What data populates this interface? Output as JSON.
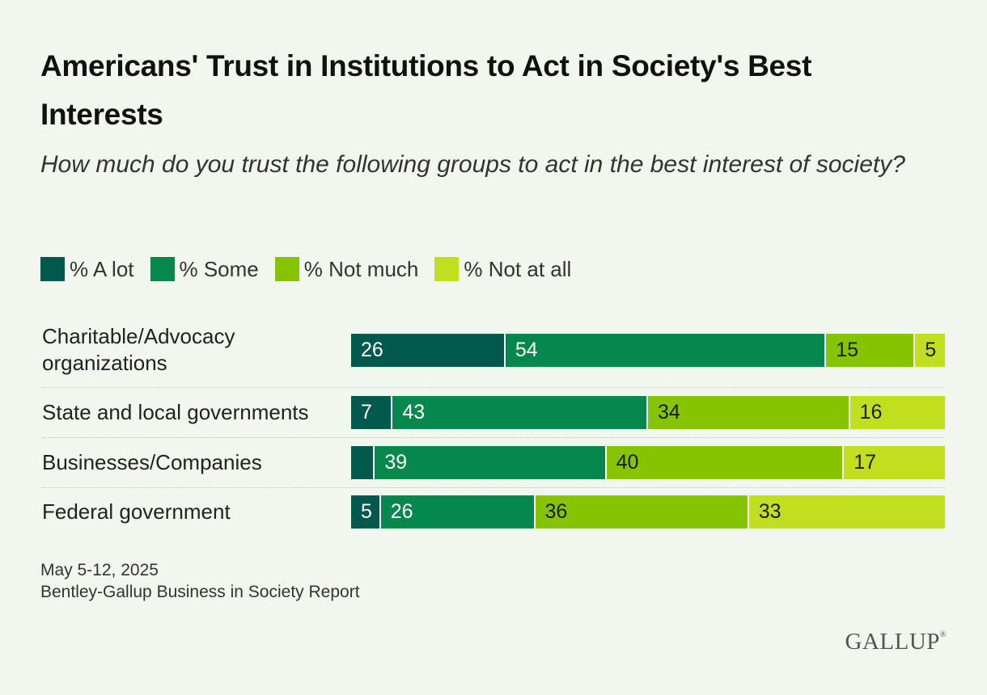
{
  "chart_data": {
    "type": "bar",
    "orientation": "horizontal",
    "stacked": true,
    "title": "Americans' Trust in Institutions to Act in Society's Best Interests",
    "subtitle": "How much do you trust the following groups to act in the best interest of society?",
    "categories": [
      "Charitable/Advocacy organizations",
      "State and local governments",
      "Businesses/Companies",
      "Federal government"
    ],
    "series": [
      {
        "name": "% A lot",
        "color": "#00594c",
        "text_color": "#ffffff",
        "values": [
          26,
          7,
          4,
          5
        ],
        "labels": [
          "26",
          "7",
          "",
          "5"
        ]
      },
      {
        "name": "% Some",
        "color": "#05874e",
        "text_color": "#ffffff",
        "values": [
          54,
          43,
          39,
          26
        ],
        "labels": [
          "54",
          "43",
          "39",
          "26"
        ]
      },
      {
        "name": "% Not much",
        "color": "#86c400",
        "text_color": "#1a1a1a",
        "values": [
          15,
          34,
          40,
          36
        ],
        "labels": [
          "15",
          "34",
          "40",
          "36"
        ]
      },
      {
        "name": "% Not at all",
        "color": "#c2df1f",
        "text_color": "#1a1a1a",
        "values": [
          5,
          16,
          17,
          33
        ],
        "labels": [
          "5",
          "16",
          "17",
          "33"
        ]
      }
    ],
    "xlim": [
      0,
      100
    ],
    "legend_position": "top-left"
  },
  "footnote": {
    "date": "May 5-12, 2025",
    "source": "Bentley-Gallup Business in Society Report"
  },
  "logo": {
    "text": "GALLUP",
    "mark": "®"
  }
}
